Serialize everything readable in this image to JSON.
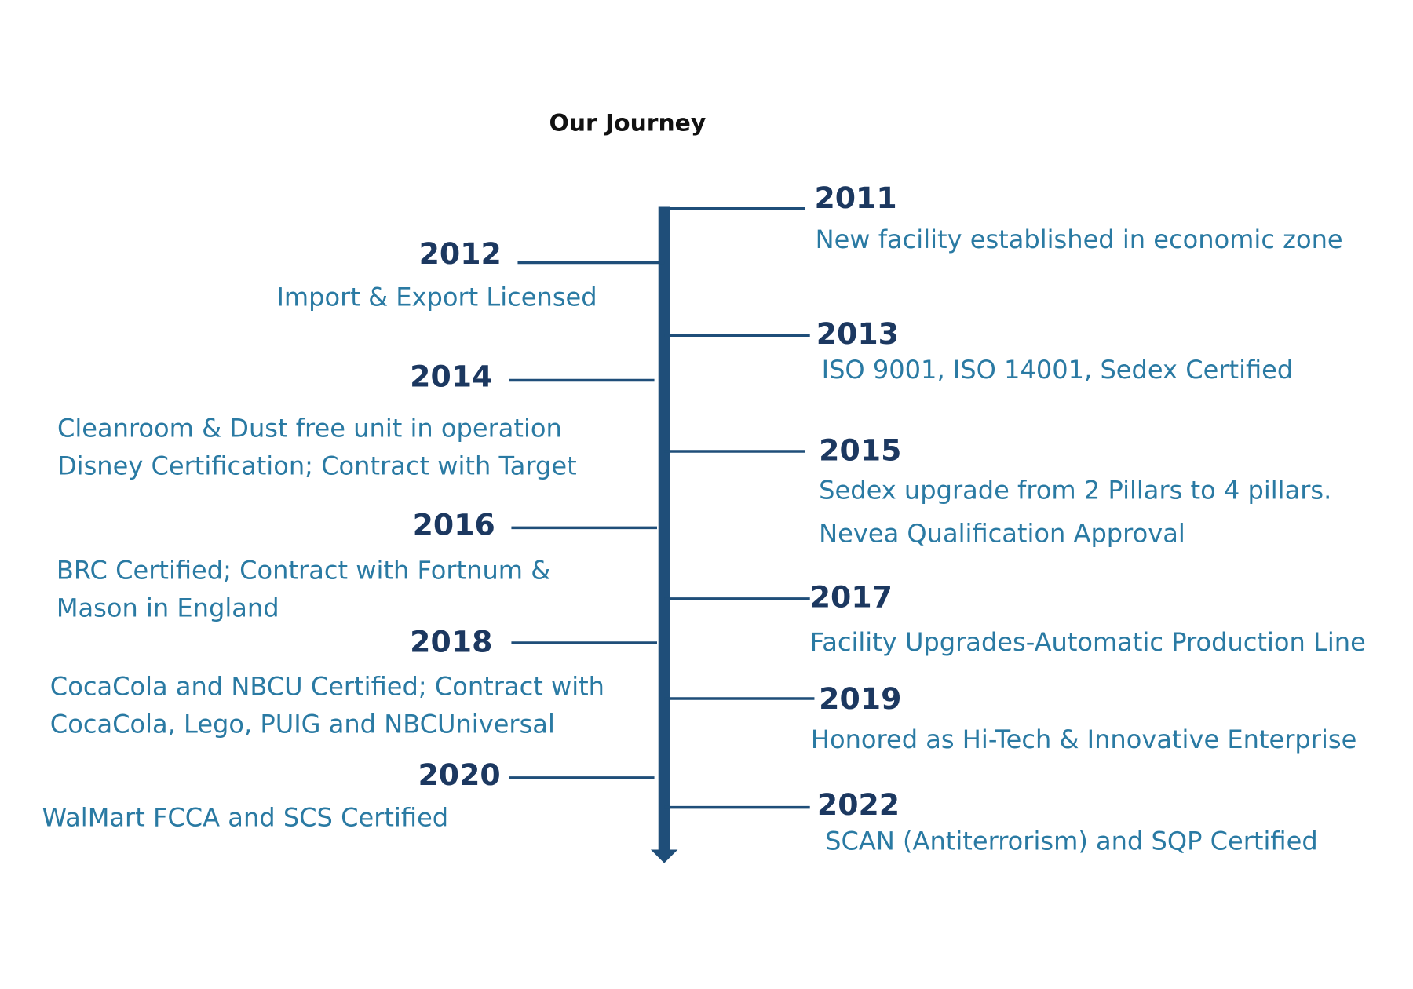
{
  "title": "Our Journey",
  "events": [
    {
      "year": "2011",
      "lines": [
        "New facility established in economic zone"
      ]
    },
    {
      "year": "2012",
      "lines": [
        "Import & Export Licensed"
      ]
    },
    {
      "year": "2013",
      "lines": [
        "ISO 9001, ISO 14001, Sedex Certified"
      ]
    },
    {
      "year": "2014",
      "lines": [
        "Cleanroom & Dust free unit in operation",
        "Disney Certification; Contract with Target"
      ]
    },
    {
      "year": "2015",
      "lines": [
        "Sedex upgrade from 2 Pillars to 4 pillars.",
        "Nevea Qualification Approval"
      ]
    },
    {
      "year": "2016",
      "lines": [
        "BRC Certified; Contract with Fortnum &",
        "Mason in England"
      ]
    },
    {
      "year": "2017",
      "lines": [
        "Facility Upgrades-Automatic Production Line"
      ]
    },
    {
      "year": "2018",
      "lines": [
        "CocaCola and NBCU Certified; Contract with",
        "CocaCola, Lego, PUIG and NBCUniversal"
      ]
    },
    {
      "year": "2019",
      "lines": [
        "Honored as Hi-Tech & Innovative Enterprise"
      ]
    },
    {
      "year": "2020",
      "lines": [
        "WalMart FCCA and SCS Certified"
      ]
    },
    {
      "year": "2022",
      "lines": [
        "SCAN (Antiterrorism) and SQP Certified"
      ]
    }
  ]
}
